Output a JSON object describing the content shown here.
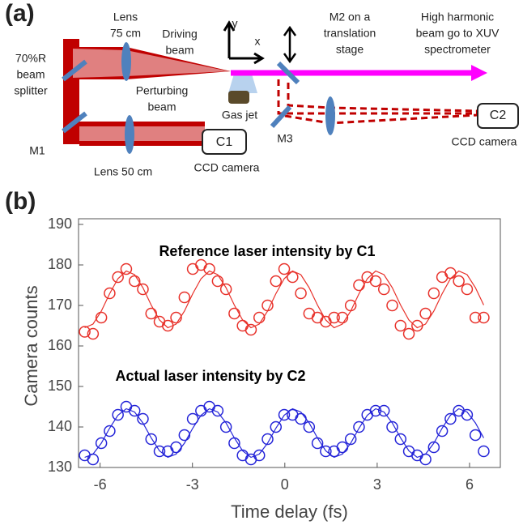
{
  "figure": {
    "panel_a": {
      "label": "(a)",
      "lens1": [
        "Lens",
        "75 cm"
      ],
      "driving": [
        "Driving",
        "beam"
      ],
      "perturbing": [
        "Perturbing",
        "beam"
      ],
      "splitter": [
        "70%R",
        "beam",
        "splitter"
      ],
      "m1": "M1",
      "lens2": "Lens 50 cm",
      "c1": "C1",
      "cam1": "CCD camera",
      "gasjet": "Gas jet",
      "axis_y": "y",
      "axis_x": "x",
      "m3": "M3",
      "m2": [
        "M2 on a",
        "translation",
        "stage"
      ],
      "hh": [
        "High harmonic",
        "beam go to XUV",
        "spectrometer"
      ],
      "c2": "C2",
      "cam2": "CCD camera"
    },
    "panel_b": {
      "label": "(b)"
    }
  },
  "chart_data": {
    "type": "scatter",
    "x_label": "Time delay (fs)",
    "y_label": "Camera counts",
    "annotations": [
      "Reference laser intensity by C1",
      "Actual laser intensity by C2"
    ],
    "x": [
      -6.5,
      -6.23,
      -5.96,
      -5.69,
      -5.42,
      -5.15,
      -4.88,
      -4.61,
      -4.34,
      -4.07,
      -3.8,
      -3.53,
      -3.26,
      -2.99,
      -2.72,
      -2.45,
      -2.18,
      -1.91,
      -1.64,
      -1.37,
      -1.1,
      -0.83,
      -0.56,
      -0.29,
      -0.02,
      0.25,
      0.52,
      0.79,
      1.06,
      1.33,
      1.6,
      1.87,
      2.14,
      2.41,
      2.68,
      2.95,
      3.22,
      3.49,
      3.76,
      4.03,
      4.3,
      4.57,
      4.84,
      5.11,
      5.38,
      5.65,
      5.92,
      6.19,
      6.46
    ],
    "series": [
      {
        "type": "scatter",
        "color": "#e8312a",
        "values": [
          163.5,
          163,
          167,
          173,
          177,
          179,
          176,
          174,
          168,
          166,
          165,
          167,
          172,
          179,
          180,
          179,
          176,
          174,
          168,
          165,
          164,
          167,
          170,
          176,
          179,
          177,
          173,
          168,
          167,
          166,
          167,
          167,
          170,
          175,
          177,
          176,
          174,
          170,
          165,
          163,
          165,
          168,
          173,
          177,
          178,
          176,
          174,
          167,
          167
        ]
      },
      {
        "type": "line",
        "color": "#e8312a",
        "values": [
          164.5,
          165.4,
          168.6,
          172.9,
          176.6,
          178.5,
          177.6,
          174.4,
          170.1,
          166.4,
          164.5,
          165.4,
          168.6,
          172.9,
          176.6,
          178.5,
          177.6,
          174.4,
          170.1,
          166.4,
          164.5,
          165.4,
          168.6,
          172.9,
          176.6,
          178.5,
          177.6,
          174.4,
          170.1,
          166.4,
          164.5,
          165.4,
          168.6,
          172.9,
          176.6,
          178.5,
          177.6,
          174.4,
          170.1,
          166.4,
          164.5,
          165.4,
          168.6,
          172.9,
          176.6,
          178.5,
          177.6,
          174.4,
          170.1
        ]
      },
      {
        "type": "scatter",
        "color": "#2424d8",
        "values": [
          133,
          132,
          136,
          139,
          143,
          145,
          144,
          142,
          137,
          134,
          134,
          135,
          138,
          142,
          144,
          145,
          144,
          140,
          136,
          133,
          132,
          133,
          137,
          140,
          143,
          143,
          142,
          140,
          136,
          134,
          134,
          135,
          137,
          140,
          143,
          144,
          144,
          140,
          137,
          134,
          133,
          132,
          135,
          139,
          142,
          144,
          143,
          138,
          134
        ]
      },
      {
        "type": "line",
        "color": "#2424d8",
        "values": [
          132.5,
          133.3,
          136.0,
          139.7,
          142.9,
          144.5,
          143.7,
          141.0,
          137.3,
          134.1,
          132.5,
          133.3,
          136.0,
          139.7,
          142.9,
          144.5,
          143.7,
          141.0,
          137.3,
          134.1,
          132.5,
          133.3,
          136.0,
          139.7,
          142.9,
          144.5,
          143.7,
          141.0,
          137.3,
          134.1,
          132.5,
          133.3,
          136.0,
          139.7,
          142.9,
          144.5,
          143.7,
          141.0,
          137.3,
          134.1,
          132.5,
          133.3,
          136.0,
          139.7,
          142.9,
          144.5,
          143.7,
          141.0,
          137.3
        ]
      }
    ],
    "xlim": [
      -6.7,
      7.0
    ],
    "xticks": [
      -6,
      -3,
      0,
      3,
      6
    ],
    "ylim": [
      130,
      190
    ],
    "yticks": [
      130,
      140,
      150,
      160,
      170,
      180,
      190
    ]
  }
}
